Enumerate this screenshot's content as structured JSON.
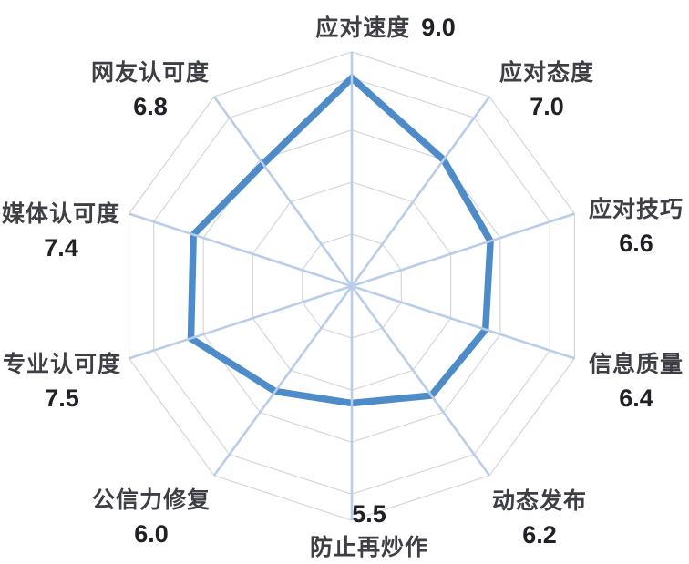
{
  "chart_data": {
    "type": "radar",
    "title": "",
    "categories": [
      "应对速度",
      "应对态度",
      "应对技巧",
      "信息质量",
      "动态发布",
      "防止再炒作",
      "公信力修复",
      "专业认可度",
      "媒体认可度",
      "网友认可度"
    ],
    "values": [
      9.0,
      7.0,
      6.6,
      6.4,
      6.2,
      5.5,
      6.0,
      7.5,
      7.4,
      6.8
    ],
    "value_labels": [
      "9.0",
      "7.0",
      "6.6",
      "6.4",
      "6.2",
      "5.5",
      "6.0",
      "7.5",
      "7.4",
      "6.8"
    ],
    "axis_range": [
      1,
      10
    ],
    "ring_values": [
      3,
      5,
      7,
      9,
      10
    ],
    "grid": true,
    "legend_position": "none",
    "series_fill": "none",
    "colors": {
      "series_line": "#4d8bc9",
      "spoke": "#b9cde8",
      "ring": "#d6d6d6",
      "category_text": "#3e3f44",
      "value_text": "#202026",
      "background": "#ffffff"
    }
  }
}
